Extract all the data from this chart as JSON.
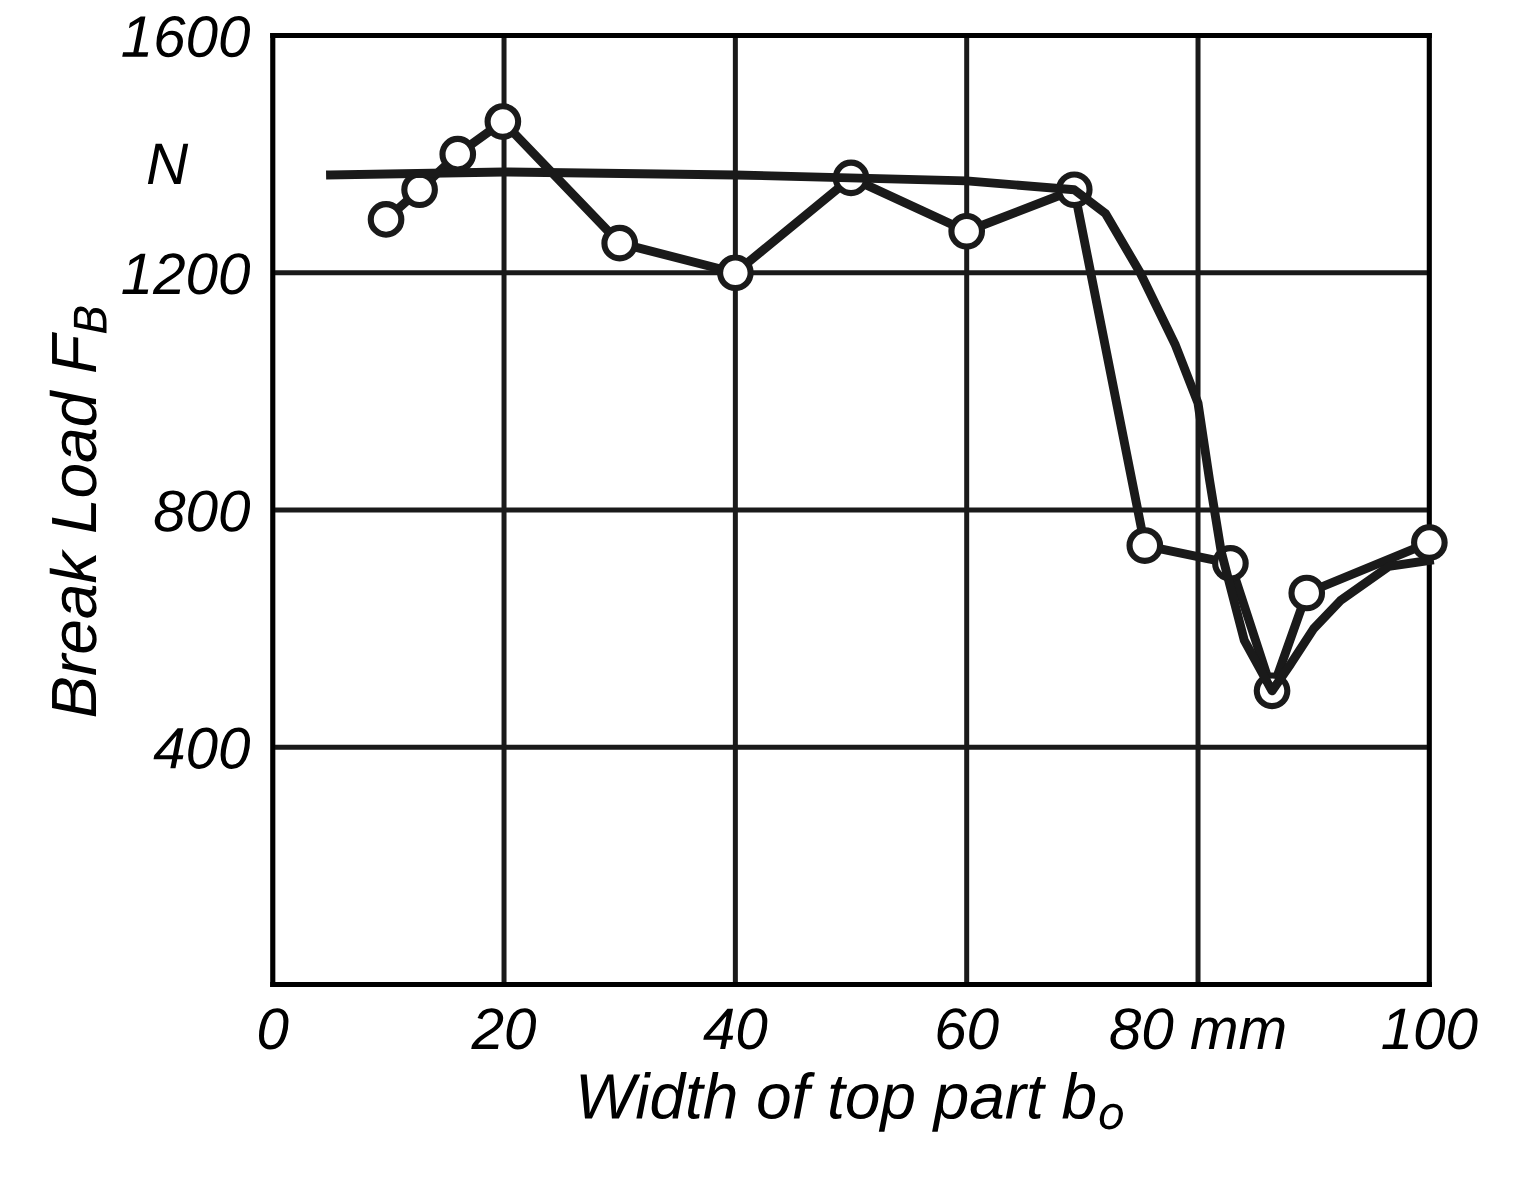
{
  "chart_data": {
    "type": "line",
    "xlabel": "Width of top part b$_{o}$",
    "ylabel": "Break Load F$_{B}$",
    "annotations": [
      "N"
    ],
    "xlim": [
      0,
      100
    ],
    "ylim": [
      0,
      1600
    ],
    "xticks": [
      0,
      20,
      40,
      60,
      {
        "value": 80,
        "label": "80 mm"
      },
      100
    ],
    "yticks": [
      400,
      800,
      1200,
      1600
    ],
    "grid": true,
    "series": [
      {
        "color": "#1a1a1a",
        "marker": "circle",
        "x": [
          9.8,
          12.7,
          16,
          19.9,
          30,
          40,
          50,
          60,
          69.3,
          75.4,
          82.8,
          86.4,
          89.4,
          100
        ],
        "values": [
          1290,
          1340,
          1400,
          1455,
          1250,
          1200,
          1360,
          1270,
          1340,
          740,
          710,
          495,
          660,
          745
        ]
      },
      {
        "color": "#1a1a1a",
        "marker": "none",
        "x": [
          5,
          20,
          40,
          60,
          69.3,
          72,
          75,
          78,
          80,
          81,
          82,
          84,
          86.4,
          88,
          90,
          92.3,
          96.5,
          100
        ],
        "values": [
          1365,
          1370,
          1365,
          1355,
          1340,
          1300,
          1200,
          1080,
          980,
          850,
          730,
          580,
          495,
          540,
          600,
          647,
          705,
          715
        ]
      }
    ]
  }
}
